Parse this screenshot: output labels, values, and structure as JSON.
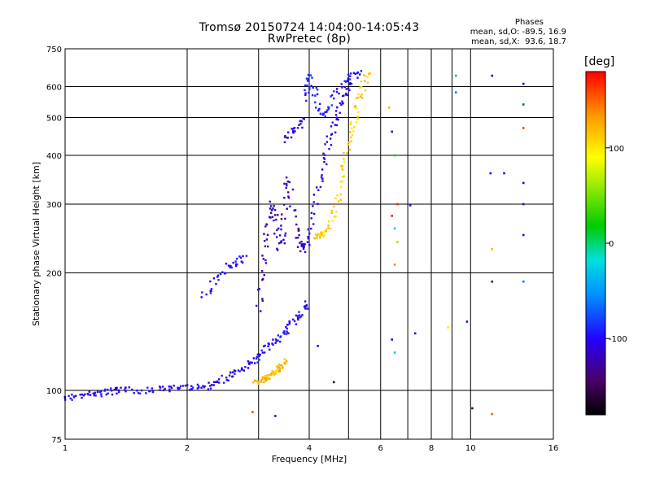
{
  "chart_data": {
    "type": "scatter",
    "title": "Tromsø 20150724 14:04:00-14:05:43",
    "subtitle": "RwPretec (8p)",
    "xlabel": "Frequency [MHz]",
    "ylabel": "Stationary phase Virtual Height [km]",
    "x_scale": "log",
    "y_scale": "log",
    "xlim": [
      1,
      16
    ],
    "ylim": [
      75,
      750
    ],
    "x_ticks": [
      1,
      2,
      4,
      6,
      8,
      10,
      16
    ],
    "x_minor_ticks": [
      3,
      5,
      7,
      9
    ],
    "y_ticks": [
      75,
      100,
      200,
      300,
      400,
      500,
      600,
      750
    ],
    "grid": true,
    "phases": {
      "title": "Phases",
      "line_o": "mean, sd,O: -89.5, 16.9",
      "line_x": "mean, sd,X:  93.6, 18.7"
    },
    "colorbar": {
      "label": "[deg]",
      "ticks": [
        100,
        0,
        -100
      ],
      "range": [
        -180,
        180
      ]
    },
    "traces": [
      {
        "name": "",
        "color_deg": -100,
        "points": [
          [
            1.0,
            96
          ],
          [
            1.05,
            96
          ],
          [
            1.1,
            97
          ],
          [
            1.15,
            98
          ],
          [
            1.2,
            98
          ],
          [
            1.25,
            99
          ],
          [
            1.3,
            99
          ],
          [
            1.35,
            100
          ],
          [
            1.4,
            100
          ],
          [
            1.5,
            100
          ],
          [
            1.6,
            100
          ],
          [
            1.7,
            101
          ],
          [
            1.8,
            101
          ],
          [
            1.9,
            101
          ],
          [
            2.0,
            102
          ],
          [
            2.1,
            102
          ],
          [
            2.2,
            102
          ],
          [
            2.3,
            103
          ],
          [
            2.4,
            105
          ],
          [
            2.5,
            108
          ],
          [
            2.6,
            110
          ],
          [
            2.7,
            112
          ],
          [
            2.8,
            115
          ],
          [
            2.9,
            118
          ],
          [
            3.0,
            122
          ],
          [
            3.1,
            126
          ],
          [
            3.2,
            130
          ],
          [
            3.3,
            134
          ],
          [
            3.4,
            138
          ],
          [
            3.5,
            142
          ],
          [
            3.6,
            147
          ],
          [
            3.7,
            152
          ],
          [
            3.8,
            158
          ],
          [
            3.9,
            163
          ],
          [
            4.0,
            168
          ]
        ]
      },
      {
        "name": "",
        "color_deg": 120,
        "points": [
          [
            2.95,
            104
          ],
          [
            3.0,
            105
          ],
          [
            3.05,
            106
          ],
          [
            3.1,
            107
          ],
          [
            3.15,
            108
          ],
          [
            3.2,
            109
          ],
          [
            3.25,
            110
          ],
          [
            3.3,
            111
          ],
          [
            3.35,
            113
          ],
          [
            3.4,
            115
          ],
          [
            3.45,
            117
          ],
          [
            3.5,
            120
          ]
        ]
      },
      {
        "name": "",
        "color_deg": -100,
        "points": [
          [
            2.2,
            175
          ],
          [
            2.3,
            185
          ],
          [
            2.4,
            195
          ],
          [
            2.5,
            205
          ],
          [
            2.6,
            212
          ],
          [
            2.7,
            215
          ],
          [
            2.8,
            220
          ]
        ]
      },
      {
        "name": "",
        "color_deg": -120,
        "points": [
          [
            3.0,
            160
          ],
          [
            3.05,
            190
          ],
          [
            3.1,
            220
          ],
          [
            3.15,
            250
          ],
          [
            3.2,
            280
          ],
          [
            3.25,
            300
          ],
          [
            3.3,
            280
          ],
          [
            3.35,
            250
          ],
          [
            3.4,
            230
          ],
          [
            3.45,
            260
          ],
          [
            3.5,
            300
          ],
          [
            3.55,
            350
          ],
          [
            3.6,
            310
          ],
          [
            3.7,
            260
          ],
          [
            3.8,
            240
          ],
          [
            3.9,
            225
          ]
        ]
      },
      {
        "name": "",
        "color_deg": -110,
        "points": [
          [
            3.5,
            440
          ],
          [
            3.6,
            455
          ],
          [
            3.7,
            465
          ],
          [
            3.8,
            480
          ],
          [
            3.9,
            500
          ]
        ]
      },
      {
        "name": "",
        "color_deg": -105,
        "points": [
          [
            3.8,
            230
          ],
          [
            3.9,
            235
          ],
          [
            4.0,
            250
          ],
          [
            4.1,
            280
          ],
          [
            4.2,
            320
          ],
          [
            4.3,
            360
          ],
          [
            4.4,
            400
          ],
          [
            4.5,
            440
          ],
          [
            4.6,
            480
          ],
          [
            4.7,
            510
          ],
          [
            4.8,
            540
          ],
          [
            4.9,
            570
          ],
          [
            5.0,
            600
          ],
          [
            5.1,
            630
          ]
        ]
      },
      {
        "name": "",
        "color_deg": -95,
        "points": [
          [
            3.9,
            560
          ],
          [
            3.95,
            600
          ],
          [
            4.0,
            640
          ],
          [
            4.1,
            600
          ],
          [
            4.2,
            540
          ],
          [
            4.3,
            500
          ],
          [
            4.4,
            520
          ],
          [
            4.6,
            560
          ],
          [
            4.8,
            600
          ],
          [
            5.0,
            630
          ],
          [
            5.2,
            640
          ],
          [
            5.4,
            650
          ]
        ]
      },
      {
        "name": "",
        "color_deg": 110,
        "points": [
          [
            4.1,
            250
          ],
          [
            4.2,
            245
          ],
          [
            4.3,
            248
          ],
          [
            4.4,
            255
          ],
          [
            4.5,
            262
          ],
          [
            4.6,
            280
          ],
          [
            4.7,
            310
          ],
          [
            4.8,
            350
          ],
          [
            4.9,
            390
          ],
          [
            5.0,
            430
          ],
          [
            5.1,
            470
          ],
          [
            5.2,
            510
          ],
          [
            5.3,
            550
          ],
          [
            5.4,
            590
          ],
          [
            5.5,
            630
          ],
          [
            5.6,
            660
          ]
        ]
      }
    ],
    "scatter_points": [
      {
        "x": 6.3,
        "y": 530,
        "deg": 120
      },
      {
        "x": 6.4,
        "y": 460,
        "deg": -130
      },
      {
        "x": 6.5,
        "y": 400,
        "deg": 10
      },
      {
        "x": 6.6,
        "y": 300,
        "deg": 170
      },
      {
        "x": 6.4,
        "y": 280,
        "deg": 170
      },
      {
        "x": 6.5,
        "y": 260,
        "deg": -30
      },
      {
        "x": 6.6,
        "y": 240,
        "deg": 60
      },
      {
        "x": 6.5,
        "y": 210,
        "deg": 140
      },
      {
        "x": 6.4,
        "y": 135,
        "deg": -110
      },
      {
        "x": 6.5,
        "y": 125,
        "deg": -30
      },
      {
        "x": 7.1,
        "y": 298,
        "deg": -110
      },
      {
        "x": 7.3,
        "y": 140,
        "deg": -110
      },
      {
        "x": 8.8,
        "y": 145,
        "deg": 100
      },
      {
        "x": 9.2,
        "y": 640,
        "deg": 10
      },
      {
        "x": 9.2,
        "y": 580,
        "deg": -60
      },
      {
        "x": 9.8,
        "y": 150,
        "deg": -110
      },
      {
        "x": 10.1,
        "y": 90,
        "deg": -150
      },
      {
        "x": 11.3,
        "y": 640,
        "deg": -130
      },
      {
        "x": 11.2,
        "y": 360,
        "deg": -110
      },
      {
        "x": 11.3,
        "y": 230,
        "deg": 120
      },
      {
        "x": 11.3,
        "y": 190,
        "deg": -140
      },
      {
        "x": 11.3,
        "y": 87,
        "deg": 150
      },
      {
        "x": 12.1,
        "y": 360,
        "deg": -110
      },
      {
        "x": 13.5,
        "y": 610,
        "deg": -110
      },
      {
        "x": 13.5,
        "y": 540,
        "deg": -80
      },
      {
        "x": 13.5,
        "y": 470,
        "deg": 160
      },
      {
        "x": 13.5,
        "y": 340,
        "deg": -110
      },
      {
        "x": 13.5,
        "y": 300,
        "deg": -110
      },
      {
        "x": 13.5,
        "y": 250,
        "deg": -110
      },
      {
        "x": 13.5,
        "y": 190,
        "deg": -60
      },
      {
        "x": 4.2,
        "y": 130,
        "deg": -100
      },
      {
        "x": 4.6,
        "y": 105,
        "deg": -160
      },
      {
        "x": 2.9,
        "y": 88,
        "deg": 160
      },
      {
        "x": 3.3,
        "y": 86,
        "deg": -110
      }
    ]
  }
}
